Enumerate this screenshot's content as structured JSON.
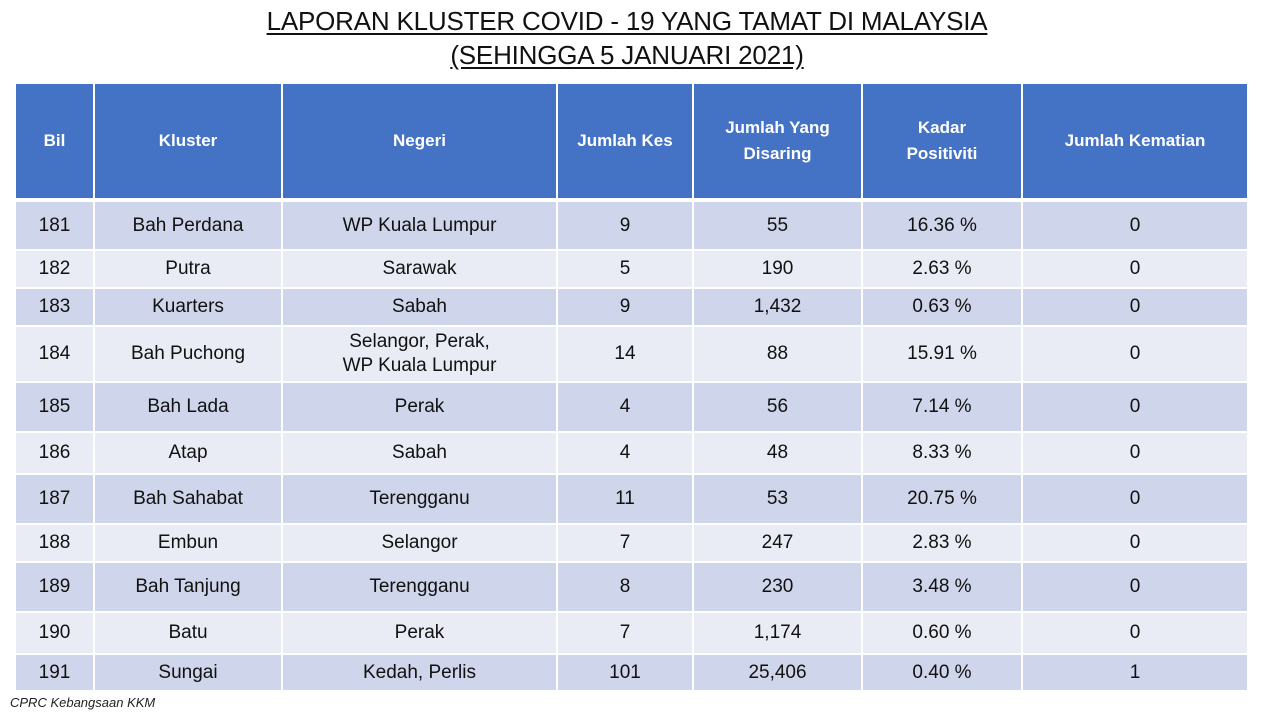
{
  "title": {
    "line1": "LAPORAN KLUSTER COVID - 19 YANG TAMAT DI MALAYSIA",
    "line2": "(SEHINGGA 5 JANUARI 2021)"
  },
  "table": {
    "headers": {
      "bil": "Bil",
      "kluster": "Kluster",
      "negeri": "Negeri",
      "jumlah_kes": "Jumlah Kes",
      "jumlah_disaring_1": "Jumlah Yang",
      "jumlah_disaring_2": "Disaring",
      "kadar_1": "Kadar",
      "kadar_2": "Positiviti",
      "kematian": "Jumlah Kematian"
    },
    "rows": [
      {
        "bil": "181",
        "kluster": "Bah Perdana",
        "negeri": "WP Kuala Lumpur",
        "negeri2": "",
        "kes": "9",
        "disaring": "55",
        "kadar": "16.36 %",
        "kematian": "0"
      },
      {
        "bil": "182",
        "kluster": "Putra",
        "negeri": "Sarawak",
        "negeri2": "",
        "kes": "5",
        "disaring": "190",
        "kadar": "2.63 %",
        "kematian": "0"
      },
      {
        "bil": "183",
        "kluster": "Kuarters",
        "negeri": "Sabah",
        "negeri2": "",
        "kes": "9",
        "disaring": "1,432",
        "kadar": "0.63 %",
        "kematian": "0"
      },
      {
        "bil": "184",
        "kluster": "Bah Puchong",
        "negeri": "Selangor, Perak,",
        "negeri2": "WP Kuala Lumpur",
        "kes": "14",
        "disaring": "88",
        "kadar": "15.91 %",
        "kematian": "0"
      },
      {
        "bil": "185",
        "kluster": "Bah Lada",
        "negeri": "Perak",
        "negeri2": "",
        "kes": "4",
        "disaring": "56",
        "kadar": "7.14 %",
        "kematian": "0"
      },
      {
        "bil": "186",
        "kluster": "Atap",
        "negeri": "Sabah",
        "negeri2": "",
        "kes": "4",
        "disaring": "48",
        "kadar": "8.33 %",
        "kematian": "0"
      },
      {
        "bil": "187",
        "kluster": "Bah Sahabat",
        "negeri": "Terengganu",
        "negeri2": "",
        "kes": "11",
        "disaring": "53",
        "kadar": "20.75 %",
        "kematian": "0"
      },
      {
        "bil": "188",
        "kluster": "Embun",
        "negeri": "Selangor",
        "negeri2": "",
        "kes": "7",
        "disaring": "247",
        "kadar": "2.83 %",
        "kematian": "0"
      },
      {
        "bil": "189",
        "kluster": "Bah Tanjung",
        "negeri": "Terengganu",
        "negeri2": "",
        "kes": "8",
        "disaring": "230",
        "kadar": "3.48 %",
        "kematian": "0"
      },
      {
        "bil": "190",
        "kluster": "Batu",
        "negeri": "Perak",
        "negeri2": "",
        "kes": "7",
        "disaring": "1,174",
        "kadar": "0.60 %",
        "kematian": "0"
      },
      {
        "bil": "191",
        "kluster": "Sungai",
        "negeri": "Kedah, Perlis",
        "negeri2": "",
        "kes": "101",
        "disaring": "25,406",
        "kadar": "0.40 %",
        "kematian": "1"
      }
    ]
  },
  "footer": {
    "source": "CPRC Kebangsaan KKM"
  },
  "colors": {
    "header_bg": "#4472c4",
    "row_dark": "#cfd5ea",
    "row_light": "#e9ecf5"
  }
}
